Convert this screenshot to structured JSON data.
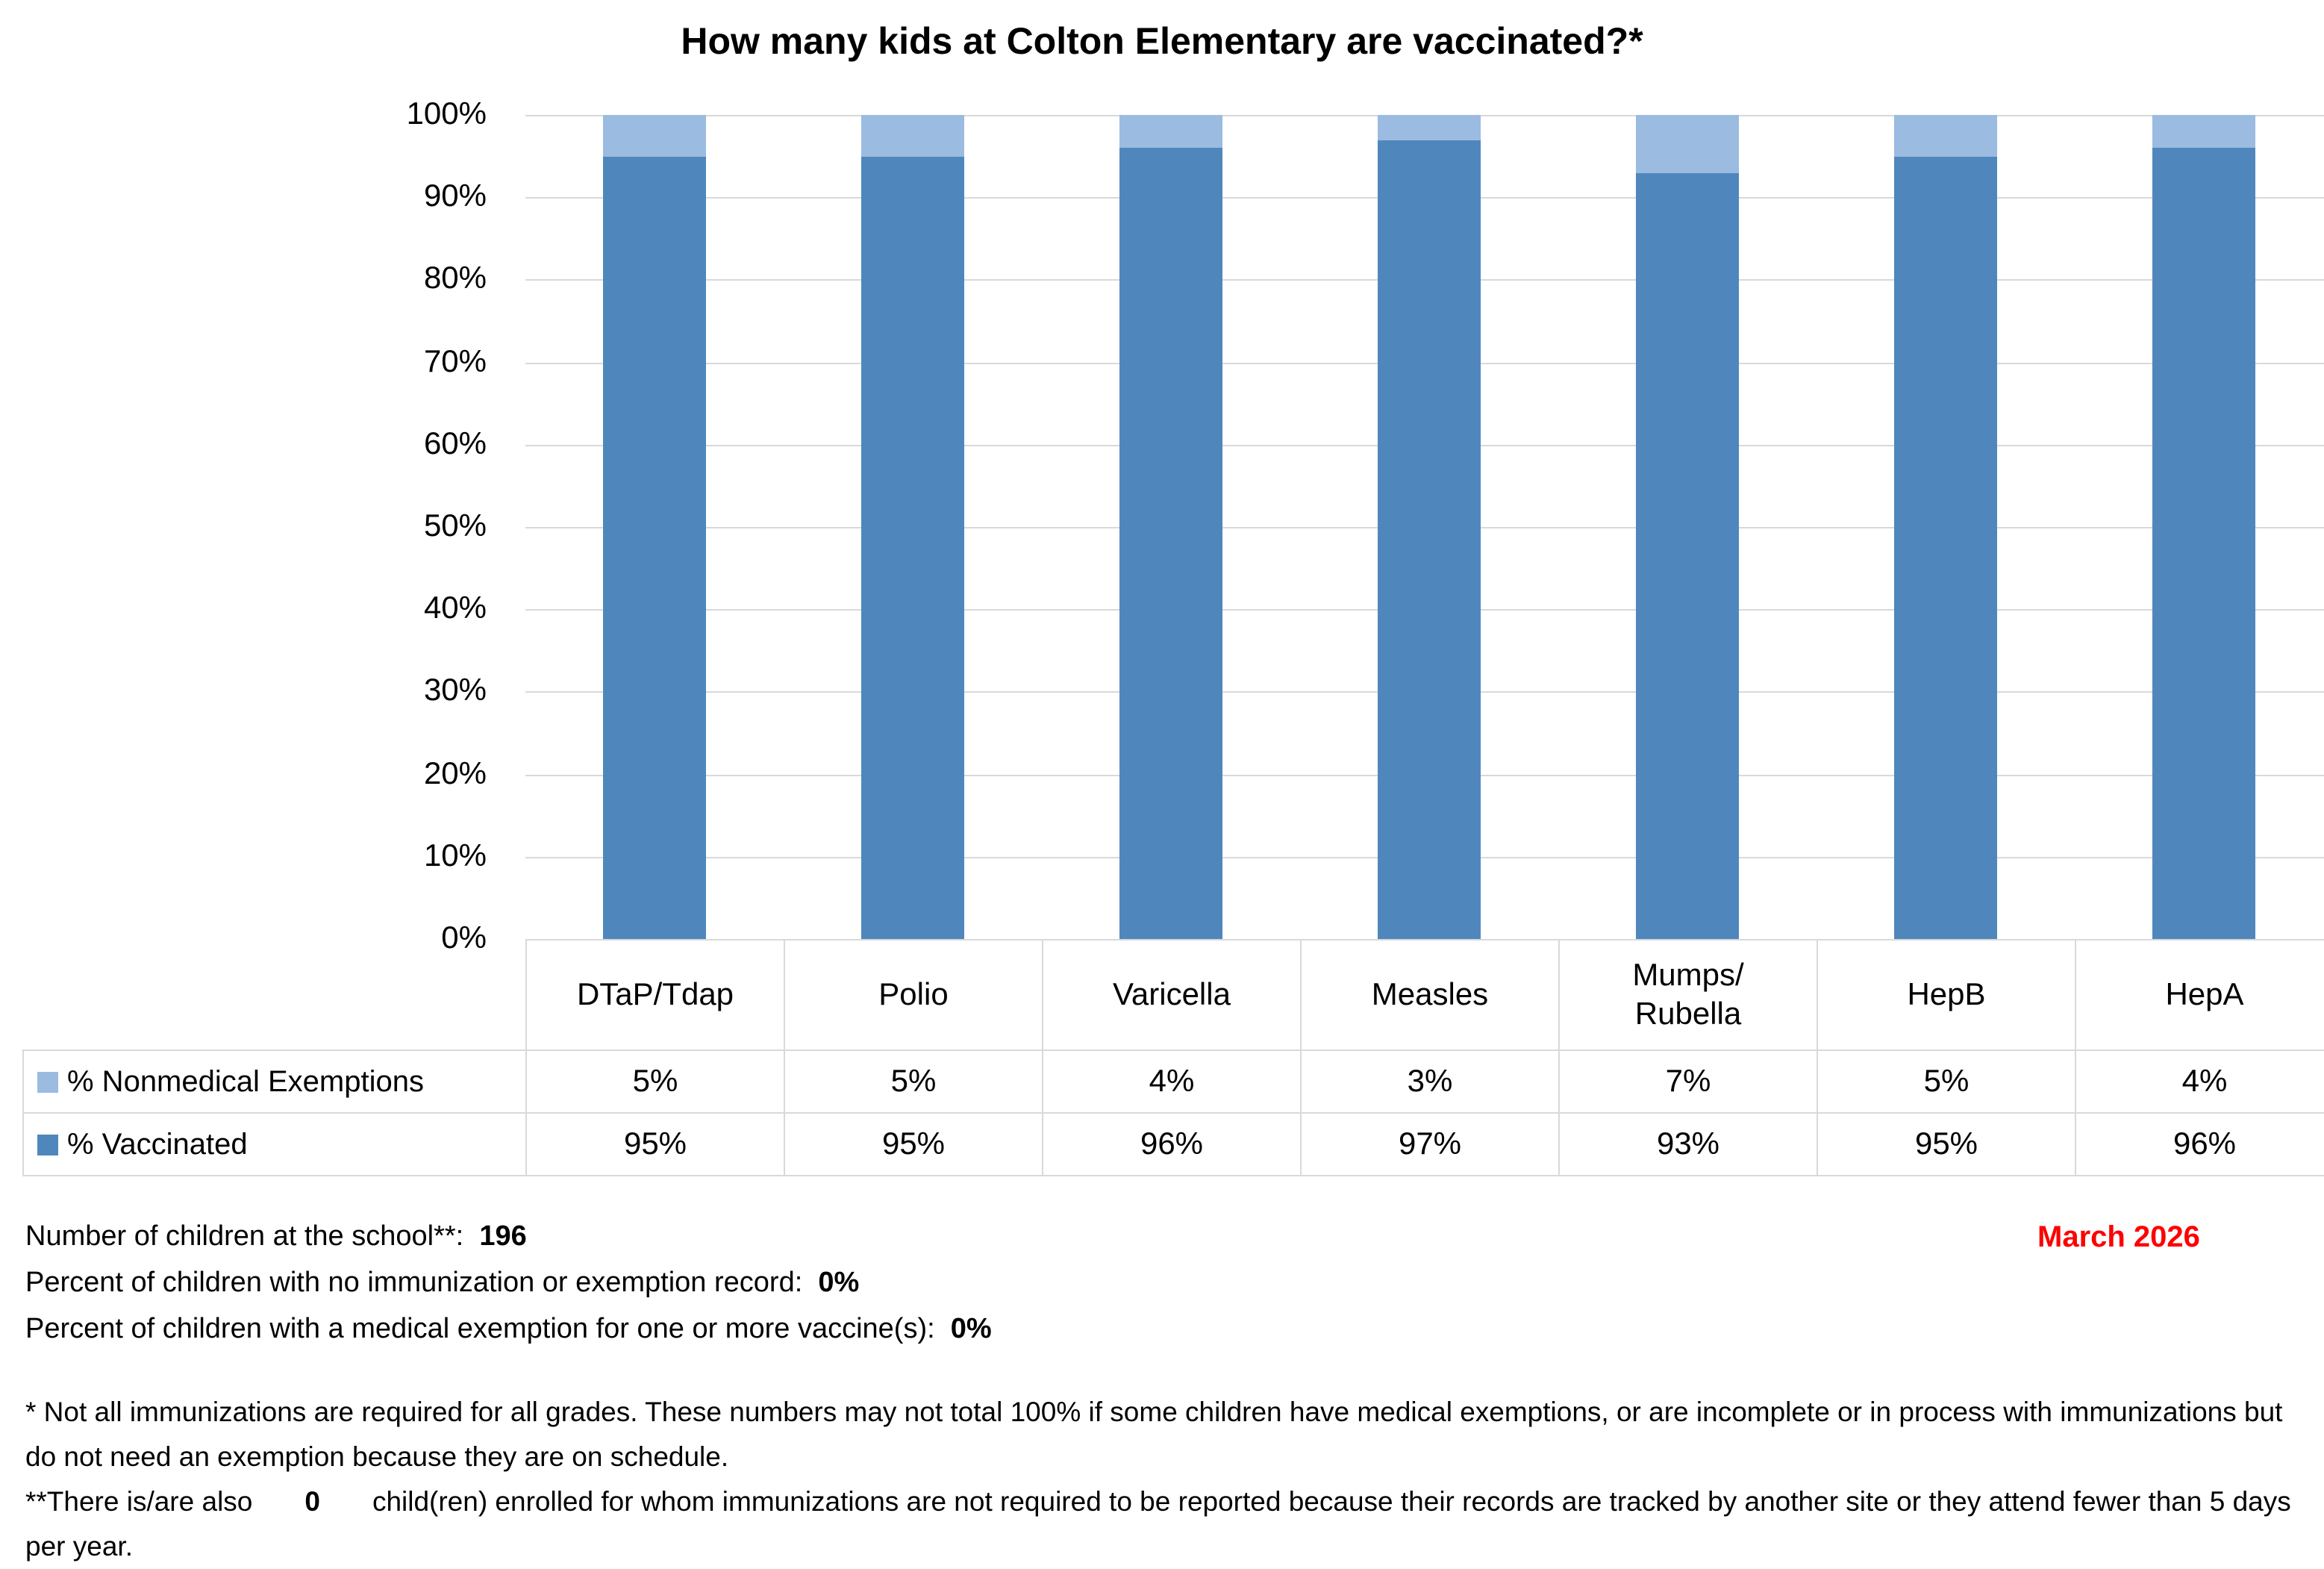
{
  "chart_data": {
    "type": "bar",
    "stacked": true,
    "title": "How many kids at Colton Elementary are vaccinated?*",
    "categories": [
      "DTaP/Tdap",
      "Polio",
      "Varicella",
      "Measles",
      "Mumps/ Rubella",
      "HepB",
      "HepA"
    ],
    "series": [
      {
        "name": "% Vaccinated",
        "color": "#4f87bd",
        "values": [
          95,
          95,
          96,
          97,
          93,
          95,
          96
        ],
        "labels": [
          "95%",
          "95%",
          "96%",
          "97%",
          "93%",
          "95%",
          "96%"
        ]
      },
      {
        "name": "% Nonmedical Exemptions",
        "color": "#9bbbe0",
        "values": [
          5,
          5,
          4,
          3,
          7,
          5,
          4
        ],
        "labels": [
          "5%",
          "5%",
          "4%",
          "3%",
          "7%",
          "5%",
          "4%"
        ]
      }
    ],
    "yticks": [
      "0%",
      "10%",
      "20%",
      "30%",
      "40%",
      "50%",
      "60%",
      "70%",
      "80%",
      "90%",
      "100%"
    ],
    "ylim": [
      0,
      100
    ],
    "grid": true,
    "legend": "data-table"
  },
  "summary": {
    "children_label": "Number of children at the school**:",
    "children_value": "196",
    "no_record_label": "Percent of children with no immunization or exemption record:",
    "no_record_value": "0%",
    "medical_label": "Percent of children with a medical exemption for one or more vaccine(s):",
    "medical_value": "0%",
    "date": "March 2026",
    "date_color": "#ff0000"
  },
  "notes": {
    "note1": "* Not all immunizations are required for all grades. These numbers may not total 100% if some children have medical exemptions, or are incomplete or in process with immunizations but do not need an exemption because they are on schedule.",
    "note2_prefix": "**There is/are also",
    "note2_value": "0",
    "note2_suffix": "child(ren) enrolled for whom immunizations are not required to be reported because their records are tracked by another site or they attend fewer than 5 days per year."
  }
}
